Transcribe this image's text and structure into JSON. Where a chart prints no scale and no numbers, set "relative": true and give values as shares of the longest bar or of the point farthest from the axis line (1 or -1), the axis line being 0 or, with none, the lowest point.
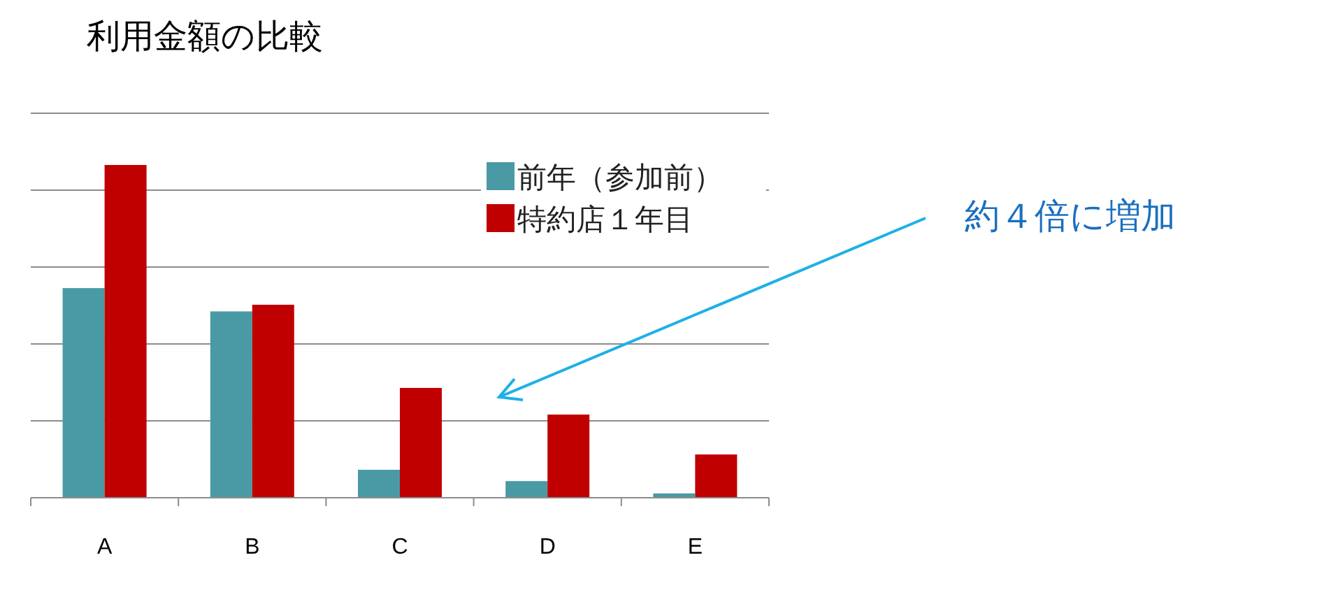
{
  "chart_data": {
    "type": "bar",
    "title": "利用金額の比較",
    "relative": true,
    "categories": [
      "A",
      "B",
      "C",
      "D",
      "E"
    ],
    "series": [
      {
        "name": "前年（参加前）",
        "color": "#4a9aa5",
        "values": [
          0.63,
          0.56,
          0.084,
          0.05,
          0.013
        ]
      },
      {
        "name": "特約店１年目",
        "color": "#c00000",
        "values": [
          1,
          0.58,
          0.33,
          0.25,
          0.13
        ]
      }
    ],
    "grid": "y",
    "legend": "top right",
    "annotations": [
      "約４倍に増加"
    ]
  }
}
